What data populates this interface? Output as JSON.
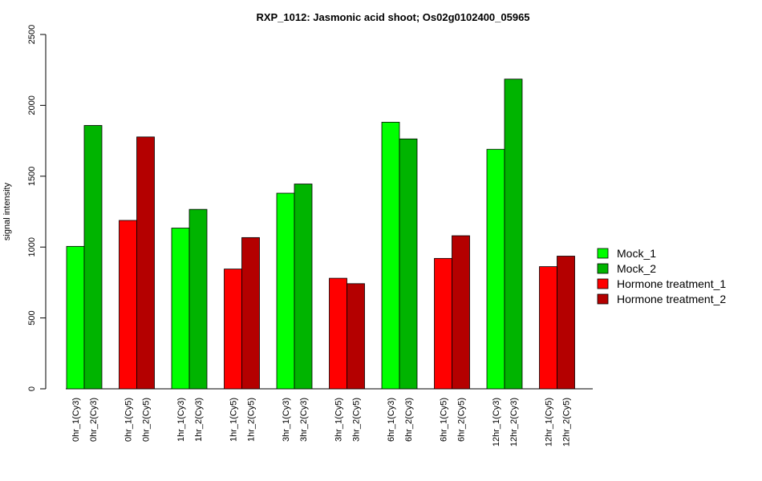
{
  "chart_data": {
    "type": "bar",
    "title": "RXP_1012: Jasmonic acid shoot; Os02g0102400_05965",
    "xlabel": "",
    "ylabel": "signal intensity",
    "ylim": [
      0,
      2500
    ],
    "yticks": [
      0,
      500,
      1000,
      1500,
      2000,
      2500
    ],
    "grid": false,
    "legend_position": "right",
    "legend": [
      {
        "label": "Mock_1",
        "color": "#00ff00"
      },
      {
        "label": "Mock_2",
        "color": "#00b400"
      },
      {
        "label": "Hormone treatment_1",
        "color": "#ff0000"
      },
      {
        "label": "Hormone treatment_2",
        "color": "#b40000"
      }
    ],
    "groups": [
      {
        "bars": [
          {
            "label": "0hr_1(Cy3)",
            "value": 1005,
            "color": "#00ff00"
          },
          {
            "label": "0hr_2(Cy3)",
            "value": 1858,
            "color": "#00b400"
          }
        ]
      },
      {
        "bars": [
          {
            "label": "0hr_1(Cy5)",
            "value": 1188,
            "color": "#ff0000"
          },
          {
            "label": "0hr_2(Cy5)",
            "value": 1777,
            "color": "#b40000"
          }
        ]
      },
      {
        "bars": [
          {
            "label": "1hr_1(Cy3)",
            "value": 1134,
            "color": "#00ff00"
          },
          {
            "label": "1hr_2(Cy3)",
            "value": 1266,
            "color": "#00b400"
          }
        ]
      },
      {
        "bars": [
          {
            "label": "1hr_1(Cy5)",
            "value": 845,
            "color": "#ff0000"
          },
          {
            "label": "1hr_2(Cy5)",
            "value": 1067,
            "color": "#b40000"
          }
        ]
      },
      {
        "bars": [
          {
            "label": "3hr_1(Cy3)",
            "value": 1380,
            "color": "#00ff00"
          },
          {
            "label": "3hr_2(Cy3)",
            "value": 1445,
            "color": "#00b400"
          }
        ]
      },
      {
        "bars": [
          {
            "label": "3hr_1(Cy5)",
            "value": 780,
            "color": "#ff0000"
          },
          {
            "label": "3hr_2(Cy5)",
            "value": 742,
            "color": "#b40000"
          }
        ]
      },
      {
        "bars": [
          {
            "label": "6hr_1(Cy3)",
            "value": 1881,
            "color": "#00ff00"
          },
          {
            "label": "6hr_2(Cy3)",
            "value": 1763,
            "color": "#00b400"
          }
        ]
      },
      {
        "bars": [
          {
            "label": "6hr_1(Cy5)",
            "value": 920,
            "color": "#ff0000"
          },
          {
            "label": "6hr_2(Cy5)",
            "value": 1080,
            "color": "#b40000"
          }
        ]
      },
      {
        "bars": [
          {
            "label": "12hr_1(Cy3)",
            "value": 1690,
            "color": "#00ff00"
          },
          {
            "label": "12hr_2(Cy3)",
            "value": 2185,
            "color": "#00b400"
          }
        ]
      },
      {
        "bars": [
          {
            "label": "12hr_1(Cy5)",
            "value": 862,
            "color": "#ff0000"
          },
          {
            "label": "12hr_2(Cy5)",
            "value": 936,
            "color": "#b40000"
          }
        ]
      }
    ]
  }
}
